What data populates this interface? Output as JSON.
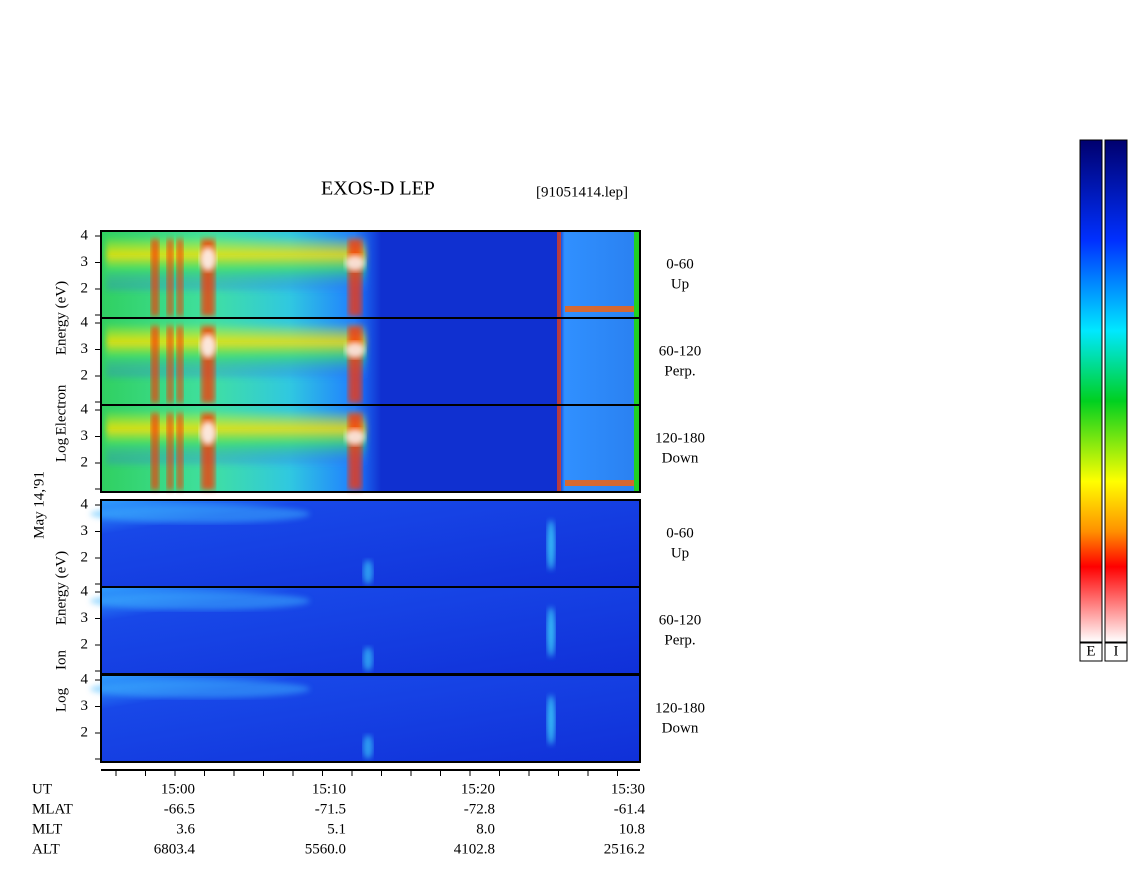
{
  "header": {
    "title": "EXOS-D LEP",
    "file": "[91051414.lep]"
  },
  "date": "May 14,'91",
  "yticks": [
    "4",
    "3",
    "2"
  ],
  "electron_label": [
    "Log",
    "Electron",
    "Energy (eV)"
  ],
  "ion_label": [
    "Log",
    "Ion",
    "Energy (eV)"
  ],
  "panels": [
    {
      "angle": "0-60",
      "direction": "Up"
    },
    {
      "angle": "60-120",
      "direction": "Perp."
    },
    {
      "angle": "120-180",
      "direction": "Down"
    }
  ],
  "footer": {
    "rows": [
      [
        "UT",
        "15:00",
        "15:10",
        "15:20",
        "15:30"
      ],
      [
        "MLAT",
        "-66.5",
        "-71.5",
        "-72.8",
        "-61.4"
      ],
      [
        "MLT",
        "3.6",
        "5.1",
        "8.0",
        "10.8"
      ],
      [
        "ALT",
        "6803.4",
        "5560.0",
        "4102.8",
        "2516.2"
      ]
    ]
  },
  "colorbars": [
    "E",
    "I"
  ]
}
